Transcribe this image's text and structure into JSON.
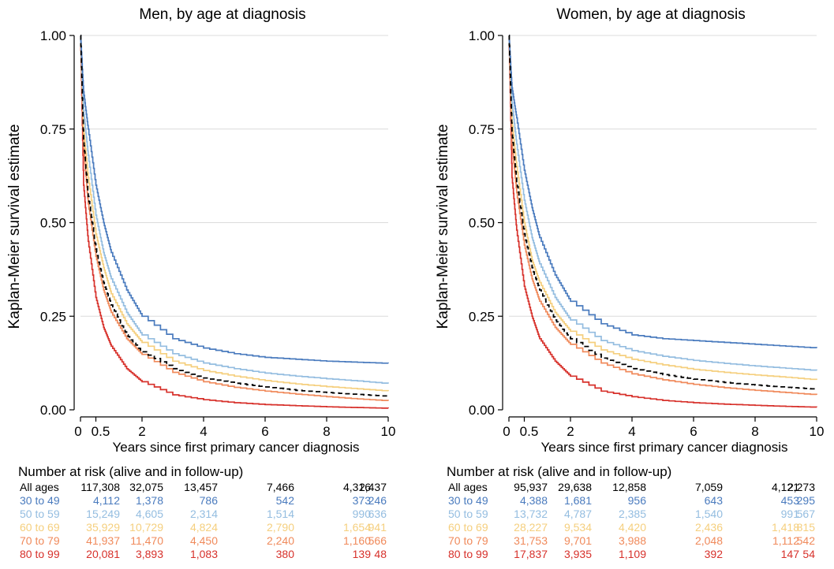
{
  "risk_table_title": "Number at risk (alive and in follow-up)",
  "series_colors": {
    "All ages": "#000000",
    "30 to 49": "#4a7bbe",
    "50 to 59": "#94bde0",
    "60 to 69": "#f5cf7e",
    "70 to 79": "#f08a5b",
    "80 to 99": "#d7312b"
  },
  "chart_data": [
    {
      "type": "line",
      "title": "Men, by age at diagnosis",
      "xlabel": "Years since first primary cancer diagnosis",
      "ylabel": "Kaplan-Meier survival estimate",
      "xlim": [
        0,
        10
      ],
      "ylim": [
        0,
        1
      ],
      "xticks": [
        "0",
        "0.5",
        "2",
        "4",
        "6",
        "8",
        "10"
      ],
      "yticks": [
        "0.00",
        "0.25",
        "0.50",
        "0.75",
        "1.00"
      ],
      "grid": "horizontal",
      "series": [
        {
          "name": "30 to 49",
          "x": [
            0,
            0.1,
            0.25,
            0.5,
            0.75,
            1,
            1.5,
            2,
            3,
            4,
            5,
            6,
            7,
            8,
            9,
            10
          ],
          "y": [
            1,
            0.85,
            0.75,
            0.6,
            0.5,
            0.42,
            0.32,
            0.25,
            0.19,
            0.165,
            0.15,
            0.14,
            0.135,
            0.13,
            0.127,
            0.124
          ]
        },
        {
          "name": "50 to 59",
          "x": [
            0,
            0.1,
            0.25,
            0.5,
            0.75,
            1,
            1.5,
            2,
            3,
            4,
            5,
            6,
            7,
            8,
            9,
            10
          ],
          "y": [
            1,
            0.8,
            0.68,
            0.52,
            0.42,
            0.35,
            0.26,
            0.2,
            0.15,
            0.125,
            0.11,
            0.098,
            0.09,
            0.083,
            0.077,
            0.07
          ]
        },
        {
          "name": "60 to 69",
          "x": [
            0,
            0.1,
            0.25,
            0.5,
            0.75,
            1,
            1.5,
            2,
            3,
            4,
            5,
            6,
            7,
            8,
            9,
            10
          ],
          "y": [
            1,
            0.75,
            0.62,
            0.47,
            0.38,
            0.31,
            0.23,
            0.18,
            0.13,
            0.105,
            0.09,
            0.078,
            0.069,
            0.062,
            0.056,
            0.05
          ]
        },
        {
          "name": "All ages",
          "x": [
            0,
            0.1,
            0.25,
            0.5,
            0.75,
            1,
            1.5,
            2,
            3,
            4,
            5,
            6,
            7,
            8,
            9,
            10
          ],
          "y": [
            1,
            0.72,
            0.57,
            0.43,
            0.34,
            0.28,
            0.2,
            0.155,
            0.11,
            0.085,
            0.071,
            0.061,
            0.052,
            0.046,
            0.041,
            0.036
          ]
        },
        {
          "name": "70 to 79",
          "x": [
            0,
            0.1,
            0.25,
            0.5,
            0.75,
            1,
            1.5,
            2,
            3,
            4,
            5,
            6,
            7,
            8,
            9,
            10
          ],
          "y": [
            1,
            0.7,
            0.55,
            0.41,
            0.32,
            0.26,
            0.19,
            0.148,
            0.1,
            0.075,
            0.06,
            0.05,
            0.042,
            0.035,
            0.029,
            0.024
          ]
        },
        {
          "name": "80 to 99",
          "x": [
            0,
            0.1,
            0.25,
            0.5,
            0.75,
            1,
            1.5,
            2,
            3,
            4,
            5,
            6,
            7,
            8,
            9,
            10
          ],
          "y": [
            1,
            0.6,
            0.45,
            0.3,
            0.22,
            0.17,
            0.11,
            0.075,
            0.04,
            0.027,
            0.019,
            0.014,
            0.011,
            0.008,
            0.006,
            0.004
          ]
        }
      ],
      "risk_table": {
        "times": [
          0,
          2,
          4,
          6,
          8,
          10
        ],
        "rows": [
          {
            "label": "All ages",
            "values": [
              "117,308",
              "32,075",
              "13,457",
              "7,466",
              "4,316",
              "2,437"
            ]
          },
          {
            "label": "30 to 49",
            "values": [
              "4,112",
              "1,378",
              "786",
              "542",
              "373",
              "246"
            ]
          },
          {
            "label": "50 to 59",
            "values": [
              "15,249",
              "4,605",
              "2,314",
              "1,514",
              "990",
              "636"
            ]
          },
          {
            "label": "60 to 69",
            "values": [
              "35,929",
              "10,729",
              "4,824",
              "2,790",
              "1,654",
              "941"
            ]
          },
          {
            "label": "70 to 79",
            "values": [
              "41,937",
              "11,470",
              "4,450",
              "2,240",
              "1,160",
              "566"
            ]
          },
          {
            "label": "80 to 99",
            "values": [
              "20,081",
              "3,893",
              "1,083",
              "380",
              "139",
              "48"
            ]
          }
        ]
      }
    },
    {
      "type": "line",
      "title": "Women, by age at diagnosis",
      "xlabel": "Years since first primary cancer diagnosis",
      "ylabel": "Kaplan-Meier survival estimate",
      "xlim": [
        0,
        10
      ],
      "ylim": [
        0,
        1
      ],
      "xticks": [
        "0",
        "0.5",
        "2",
        "4",
        "6",
        "8",
        "10"
      ],
      "yticks": [
        "0.00",
        "0.25",
        "0.50",
        "0.75",
        "1.00"
      ],
      "grid": "horizontal",
      "series": [
        {
          "name": "30 to 49",
          "x": [
            0,
            0.1,
            0.25,
            0.5,
            0.75,
            1,
            1.5,
            2,
            3,
            4,
            5,
            6,
            7,
            8,
            9,
            10
          ],
          "y": [
            1,
            0.86,
            0.78,
            0.64,
            0.54,
            0.46,
            0.36,
            0.29,
            0.23,
            0.2,
            0.19,
            0.185,
            0.18,
            0.175,
            0.17,
            0.165
          ]
        },
        {
          "name": "50 to 59",
          "x": [
            0,
            0.1,
            0.25,
            0.5,
            0.75,
            1,
            1.5,
            2,
            3,
            4,
            5,
            6,
            7,
            8,
            9,
            10
          ],
          "y": [
            1,
            0.82,
            0.71,
            0.56,
            0.46,
            0.39,
            0.3,
            0.24,
            0.185,
            0.158,
            0.143,
            0.132,
            0.124,
            0.117,
            0.111,
            0.105
          ]
        },
        {
          "name": "60 to 69",
          "x": [
            0,
            0.1,
            0.25,
            0.5,
            0.75,
            1,
            1.5,
            2,
            3,
            4,
            5,
            6,
            7,
            8,
            9,
            10
          ],
          "y": [
            1,
            0.77,
            0.65,
            0.5,
            0.4,
            0.34,
            0.26,
            0.21,
            0.16,
            0.135,
            0.12,
            0.108,
            0.1,
            0.093,
            0.087,
            0.08
          ]
        },
        {
          "name": "All ages",
          "x": [
            0,
            0.1,
            0.25,
            0.5,
            0.75,
            1,
            1.5,
            2,
            3,
            4,
            5,
            6,
            7,
            8,
            9,
            10
          ],
          "y": [
            1,
            0.74,
            0.61,
            0.47,
            0.38,
            0.32,
            0.24,
            0.19,
            0.138,
            0.11,
            0.094,
            0.082,
            0.073,
            0.066,
            0.06,
            0.055
          ]
        },
        {
          "name": "70 to 79",
          "x": [
            0,
            0.1,
            0.25,
            0.5,
            0.75,
            1,
            1.5,
            2,
            3,
            4,
            5,
            6,
            7,
            8,
            9,
            10
          ],
          "y": [
            1,
            0.71,
            0.58,
            0.44,
            0.35,
            0.29,
            0.22,
            0.175,
            0.125,
            0.096,
            0.08,
            0.068,
            0.059,
            0.052,
            0.046,
            0.04
          ]
        },
        {
          "name": "80 to 99",
          "x": [
            0,
            0.1,
            0.25,
            0.5,
            0.75,
            1,
            1.5,
            2,
            3,
            4,
            5,
            6,
            7,
            8,
            9,
            10
          ],
          "y": [
            1,
            0.62,
            0.48,
            0.33,
            0.25,
            0.19,
            0.13,
            0.09,
            0.05,
            0.035,
            0.025,
            0.019,
            0.015,
            0.012,
            0.009,
            0.007
          ]
        }
      ],
      "risk_table": {
        "times": [
          0,
          2,
          4,
          6,
          8,
          10
        ],
        "rows": [
          {
            "label": "All ages",
            "values": [
              "95,937",
              "29,638",
              "12,858",
              "7,059",
              "4,121",
              "2,273"
            ]
          },
          {
            "label": "30 to 49",
            "values": [
              "4,388",
              "1,681",
              "956",
              "643",
              "453",
              "295"
            ]
          },
          {
            "label": "50 to 59",
            "values": [
              "13,732",
              "4,787",
              "2,385",
              "1,540",
              "991",
              "567"
            ]
          },
          {
            "label": "60 to 69",
            "values": [
              "28,227",
              "9,534",
              "4,420",
              "2,436",
              "1,418",
              "815"
            ]
          },
          {
            "label": "70 to 79",
            "values": [
              "31,753",
              "9,701",
              "3,988",
              "2,048",
              "1,112",
              "542"
            ]
          },
          {
            "label": "80 to 99",
            "values": [
              "17,837",
              "3,935",
              "1,109",
              "392",
              "147",
              "54"
            ]
          }
        ]
      }
    }
  ]
}
